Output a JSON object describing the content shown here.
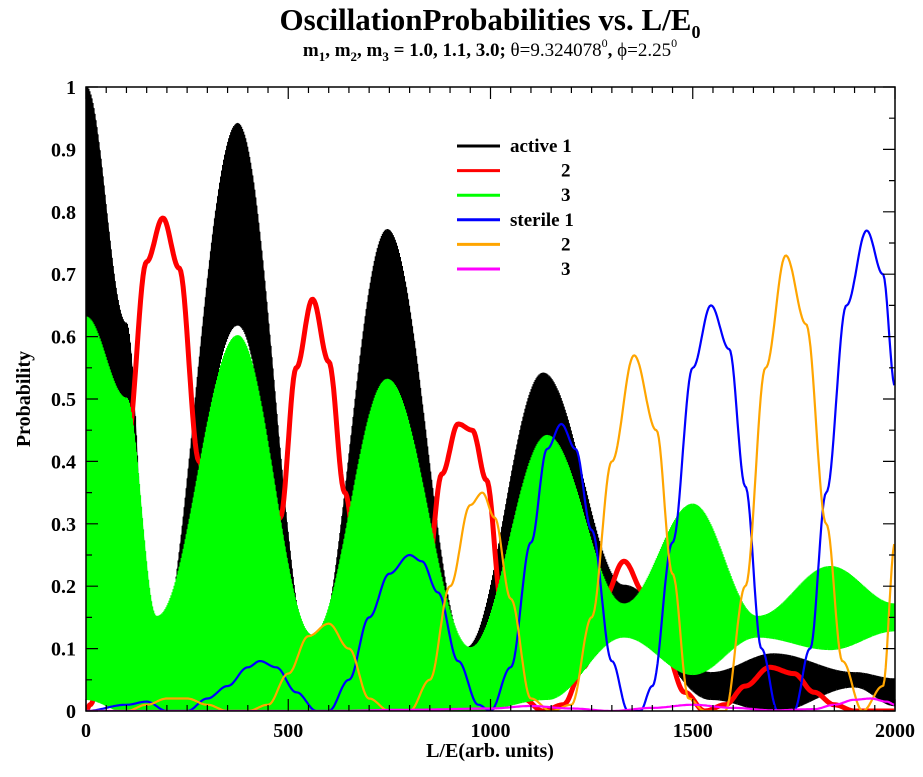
{
  "chart_data": {
    "type": "line",
    "title_main": "OscillationProbabilities vs. L/E",
    "title_main_sub": "0",
    "subtitle": {
      "m": "m",
      "i1": "1",
      "i2": "2",
      "i3": "3",
      "sep1": ", ",
      "sep2": ", ",
      "values": " = 1.0, 1.1, 3.0; ",
      "theta_sym": "θ",
      "theta_val": "=9.324078",
      "theta_sup": "0",
      "mid": ", ",
      "phi_sym": "ϕ",
      "phi_val": "=2.25",
      "phi_sup": "0"
    },
    "xlabel": "L/E(arb. units)",
    "ylabel": "Probability",
    "xlim": [
      0,
      2000
    ],
    "ylim": [
      0,
      1
    ],
    "xticks": [
      "0",
      "500",
      "1000",
      "1500",
      "2000"
    ],
    "yticks": [
      "0",
      "0.1",
      "0.2",
      "0.3",
      "0.4",
      "0.5",
      "0.6",
      "0.7",
      "0.8",
      "0.9",
      "1"
    ],
    "grid": false,
    "legend_position": "top-center",
    "series": [
      {
        "name": "active 1",
        "color": "#000000",
        "style": "band",
        "x": [
          0,
          100,
          165,
          375,
          560,
          745,
          940,
          1130,
          1330,
          1545,
          1700,
          1900,
          2000
        ],
        "upper": [
          1.0,
          0.62,
          0.06,
          0.94,
          0.08,
          0.77,
          0.1,
          0.54,
          0.2,
          0.06,
          0.09,
          0.06,
          0.05
        ],
        "lower": [
          0.62,
          0.12,
          0.0,
          0.62,
          0.0,
          0.53,
          0.0,
          0.43,
          0.15,
          0.02,
          0.0,
          0.04,
          0.01
        ]
      },
      {
        "name": "2",
        "color": "#ff0000",
        "style": "thick",
        "x": [
          0,
          10,
          50,
          100,
          150,
          190,
          230,
          280,
          330,
          380,
          430,
          480,
          520,
          560,
          600,
          640,
          690,
          740,
          790,
          840,
          880,
          920,
          955,
          990,
          1030,
          1080,
          1130,
          1180,
          1230,
          1280,
          1330,
          1380,
          1430,
          1480,
          1530,
          1580,
          1630,
          1690,
          1750,
          1800,
          1850,
          1900,
          1950,
          2000
        ],
        "values": [
          0,
          0.01,
          0.1,
          0.42,
          0.72,
          0.79,
          0.71,
          0.4,
          0.1,
          0.01,
          0.06,
          0.31,
          0.55,
          0.66,
          0.56,
          0.35,
          0.09,
          0.0,
          0.04,
          0.2,
          0.38,
          0.46,
          0.45,
          0.37,
          0.16,
          0.02,
          0.0,
          0.01,
          0.07,
          0.18,
          0.24,
          0.19,
          0.1,
          0.03,
          0.0,
          0.01,
          0.04,
          0.07,
          0.06,
          0.03,
          0.01,
          0.0,
          0.0,
          0.0
        ]
      },
      {
        "name": "3",
        "color": "#00ff00",
        "style": "band",
        "x": [
          0,
          100,
          175,
          375,
          560,
          745,
          950,
          1140,
          1330,
          1500,
          1660,
          1840,
          2000
        ],
        "upper": [
          0.63,
          0.5,
          0.15,
          0.6,
          0.12,
          0.53,
          0.1,
          0.44,
          0.17,
          0.33,
          0.15,
          0.23,
          0.17
        ],
        "lower": [
          0.02,
          0.0,
          0.0,
          0.0,
          0.0,
          0.0,
          0.0,
          0.02,
          0.12,
          0.06,
          0.12,
          0.1,
          0.13
        ]
      },
      {
        "name": "sterile 1",
        "color": "#0000ff",
        "style": "line",
        "x": [
          0,
          100,
          150,
          200,
          250,
          300,
          350,
          400,
          430,
          470,
          520,
          570,
          600,
          650,
          700,
          750,
          800,
          830,
          870,
          920,
          970,
          1000,
          1050,
          1100,
          1140,
          1175,
          1210,
          1250,
          1300,
          1340,
          1370,
          1400,
          1450,
          1500,
          1545,
          1590,
          1630,
          1670,
          1710,
          1750,
          1790,
          1830,
          1880,
          1930,
          1970,
          2000
        ],
        "values": [
          0,
          0.01,
          0.015,
          0.0,
          0.0,
          0.02,
          0.04,
          0.07,
          0.08,
          0.07,
          0.03,
          0.0,
          0.0,
          0.05,
          0.15,
          0.22,
          0.25,
          0.24,
          0.19,
          0.08,
          0.01,
          0.0,
          0.07,
          0.27,
          0.42,
          0.46,
          0.42,
          0.29,
          0.08,
          0.0,
          0.0,
          0.04,
          0.27,
          0.55,
          0.65,
          0.58,
          0.36,
          0.1,
          0.0,
          0.0,
          0.1,
          0.35,
          0.65,
          0.77,
          0.7,
          0.52
        ]
      },
      {
        "name": "2",
        "color": "#ffa500",
        "style": "line",
        "x": [
          0,
          100,
          150,
          200,
          250,
          300,
          350,
          400,
          450,
          500,
          550,
          600,
          650,
          700,
          750,
          800,
          850,
          900,
          950,
          980,
          1010,
          1050,
          1100,
          1150,
          1200,
          1250,
          1300,
          1355,
          1410,
          1450,
          1490,
          1530,
          1580,
          1630,
          1680,
          1730,
          1780,
          1830,
          1870,
          1920,
          1970,
          2000
        ],
        "values": [
          0,
          0.0,
          0.01,
          0.02,
          0.02,
          0.01,
          0.0,
          0.0,
          0.01,
          0.06,
          0.12,
          0.14,
          0.1,
          0.02,
          0.0,
          0.0,
          0.05,
          0.2,
          0.33,
          0.35,
          0.31,
          0.18,
          0.02,
          0.0,
          0.01,
          0.15,
          0.4,
          0.57,
          0.45,
          0.22,
          0.02,
          0.0,
          0.0,
          0.2,
          0.55,
          0.73,
          0.62,
          0.3,
          0.08,
          0.0,
          0.04,
          0.27
        ]
      },
      {
        "name": "3",
        "color": "#ff00ff",
        "style": "line",
        "x": [
          0,
          200,
          400,
          600,
          800,
          1000,
          1100,
          1200,
          1300,
          1400,
          1500,
          1600,
          1700,
          1800,
          1850,
          1900,
          1940,
          1980,
          2000
        ],
        "values": [
          0,
          0,
          0,
          0,
          0.002,
          0.004,
          0.008,
          0.004,
          0.0,
          0.005,
          0.01,
          0.005,
          0.001,
          0.003,
          0.01,
          0.018,
          0.02,
          0.015,
          0.01
        ]
      }
    ]
  }
}
